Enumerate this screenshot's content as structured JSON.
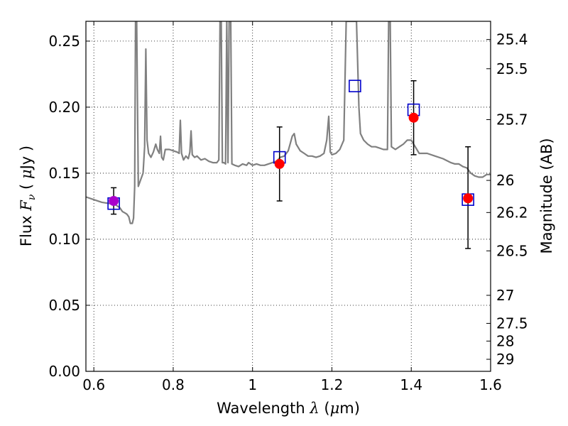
{
  "chart_data": {
    "type": "scatter",
    "xlabel": "Wavelength",
    "xlabel_symbol": "λ",
    "xlabel_unit_open": "(",
    "xlabel_unit_mu": "μ",
    "xlabel_unit_rest": "m)",
    "ylabel": "Flux",
    "ylabel_symbol": "F",
    "ylabel_sub": "ν",
    "ylabel_unit_open": "(",
    "ylabel_unit_mu": "μ",
    "ylabel_unit_rest": "Jy",
    "ylabel_unit_close": ")",
    "y2label": "Magnitude (AB)",
    "xlim": [
      0.58,
      1.6
    ],
    "ylim": [
      0.0,
      0.265
    ],
    "grid": true,
    "x_ticks": [
      0.6,
      0.8,
      1.0,
      1.2,
      1.4,
      1.6
    ],
    "x_tick_labels": [
      "0.6",
      "0.8",
      "1",
      "1.2",
      "1.4",
      "1.6"
    ],
    "y_ticks": [
      0.0,
      0.05,
      0.1,
      0.15,
      0.2,
      0.25
    ],
    "y_tick_labels": [
      "0.00",
      "0.05",
      "0.10",
      "0.15",
      "0.20",
      "0.25"
    ],
    "y2_ticks": [
      25.4,
      25.5,
      25.7,
      26,
      26.2,
      26.5,
      27,
      27.5,
      28,
      29
    ],
    "y2_tick_labels": [
      "25.4",
      "25.5",
      "25.7",
      "26",
      "26.2",
      "26.5",
      "27",
      "27.5",
      "28",
      "29"
    ],
    "colors": {
      "template": "#808080",
      "observed": "#ff0000",
      "model_box": "#0000cc",
      "errorbar": "#000000",
      "first_point": "#aa00cc"
    },
    "template_spectrum": [
      [
        0.58,
        0.132
      ],
      [
        0.6,
        0.13
      ],
      [
        0.62,
        0.128
      ],
      [
        0.64,
        0.127
      ],
      [
        0.655,
        0.126
      ],
      [
        0.665,
        0.124
      ],
      [
        0.672,
        0.121
      ],
      [
        0.678,
        0.12
      ],
      [
        0.683,
        0.119
      ],
      [
        0.688,
        0.117
      ],
      [
        0.692,
        0.112
      ],
      [
        0.697,
        0.112
      ],
      [
        0.7,
        0.116
      ],
      [
        0.703,
        0.14
      ],
      [
        0.705,
        0.265
      ],
      [
        0.708,
        0.265
      ],
      [
        0.712,
        0.14
      ],
      [
        0.718,
        0.145
      ],
      [
        0.724,
        0.15
      ],
      [
        0.728,
        0.17
      ],
      [
        0.731,
        0.244
      ],
      [
        0.734,
        0.175
      ],
      [
        0.738,
        0.165
      ],
      [
        0.744,
        0.162
      ],
      [
        0.75,
        0.166
      ],
      [
        0.756,
        0.172
      ],
      [
        0.76,
        0.168
      ],
      [
        0.765,
        0.165
      ],
      [
        0.768,
        0.178
      ],
      [
        0.771,
        0.162
      ],
      [
        0.775,
        0.16
      ],
      [
        0.78,
        0.168
      ],
      [
        0.79,
        0.168
      ],
      [
        0.8,
        0.167
      ],
      [
        0.81,
        0.166
      ],
      [
        0.815,
        0.165
      ],
      [
        0.818,
        0.19
      ],
      [
        0.821,
        0.165
      ],
      [
        0.826,
        0.16
      ],
      [
        0.832,
        0.163
      ],
      [
        0.838,
        0.161
      ],
      [
        0.842,
        0.166
      ],
      [
        0.845,
        0.182
      ],
      [
        0.848,
        0.164
      ],
      [
        0.854,
        0.162
      ],
      [
        0.86,
        0.163
      ],
      [
        0.87,
        0.16
      ],
      [
        0.88,
        0.161
      ],
      [
        0.89,
        0.159
      ],
      [
        0.9,
        0.158
      ],
      [
        0.91,
        0.158
      ],
      [
        0.915,
        0.16
      ],
      [
        0.918,
        0.265
      ],
      [
        0.921,
        0.265
      ],
      [
        0.924,
        0.158
      ],
      [
        0.928,
        0.158
      ],
      [
        0.932,
        0.157
      ],
      [
        0.935,
        0.265
      ],
      [
        0.938,
        0.158
      ],
      [
        0.941,
        0.265
      ],
      [
        0.945,
        0.265
      ],
      [
        0.948,
        0.157
      ],
      [
        0.955,
        0.156
      ],
      [
        0.965,
        0.155
      ],
      [
        0.975,
        0.157
      ],
      [
        0.985,
        0.156
      ],
      [
        0.99,
        0.158
      ],
      [
        1.0,
        0.156
      ],
      [
        1.01,
        0.157
      ],
      [
        1.02,
        0.156
      ],
      [
        1.03,
        0.156
      ],
      [
        1.04,
        0.157
      ],
      [
        1.05,
        0.158
      ],
      [
        1.06,
        0.159
      ],
      [
        1.07,
        0.162
      ],
      [
        1.08,
        0.163
      ],
      [
        1.09,
        0.167
      ],
      [
        1.1,
        0.178
      ],
      [
        1.105,
        0.18
      ],
      [
        1.11,
        0.172
      ],
      [
        1.12,
        0.167
      ],
      [
        1.13,
        0.165
      ],
      [
        1.14,
        0.163
      ],
      [
        1.15,
        0.163
      ],
      [
        1.16,
        0.162
      ],
      [
        1.17,
        0.163
      ],
      [
        1.18,
        0.165
      ],
      [
        1.187,
        0.175
      ],
      [
        1.192,
        0.193
      ],
      [
        1.196,
        0.166
      ],
      [
        1.2,
        0.164
      ],
      [
        1.21,
        0.165
      ],
      [
        1.22,
        0.168
      ],
      [
        1.23,
        0.175
      ],
      [
        1.236,
        0.265
      ],
      [
        1.262,
        0.265
      ],
      [
        1.268,
        0.2
      ],
      [
        1.272,
        0.18
      ],
      [
        1.28,
        0.175
      ],
      [
        1.29,
        0.172
      ],
      [
        1.3,
        0.17
      ],
      [
        1.31,
        0.17
      ],
      [
        1.32,
        0.169
      ],
      [
        1.33,
        0.168
      ],
      [
        1.34,
        0.168
      ],
      [
        1.343,
        0.265
      ],
      [
        1.347,
        0.265
      ],
      [
        1.35,
        0.17
      ],
      [
        1.36,
        0.168
      ],
      [
        1.37,
        0.17
      ],
      [
        1.38,
        0.172
      ],
      [
        1.39,
        0.175
      ],
      [
        1.4,
        0.175
      ],
      [
        1.41,
        0.17
      ],
      [
        1.42,
        0.165
      ],
      [
        1.44,
        0.165
      ],
      [
        1.46,
        0.163
      ],
      [
        1.48,
        0.161
      ],
      [
        1.5,
        0.158
      ],
      [
        1.51,
        0.157
      ],
      [
        1.52,
        0.157
      ],
      [
        1.53,
        0.155
      ],
      [
        1.54,
        0.154
      ],
      [
        1.55,
        0.15
      ],
      [
        1.56,
        0.148
      ],
      [
        1.57,
        0.147
      ],
      [
        1.58,
        0.147
      ],
      [
        1.59,
        0.149
      ],
      [
        1.6,
        0.149
      ]
    ],
    "observed": [
      {
        "x": 0.65,
        "y": 0.129,
        "yerr_low": 0.119,
        "yerr_high": 0.139
      },
      {
        "x": 1.068,
        "y": 0.157,
        "yerr_low": 0.129,
        "yerr_high": 0.185
      },
      {
        "x": 1.406,
        "y": 0.192,
        "yerr_low": 0.164,
        "yerr_high": 0.22
      },
      {
        "x": 1.543,
        "y": 0.131,
        "yerr_low": 0.093,
        "yerr_high": 0.17
      }
    ],
    "model": [
      {
        "x": 0.65,
        "y": 0.127
      },
      {
        "x": 1.068,
        "y": 0.162
      },
      {
        "x": 1.258,
        "y": 0.216
      },
      {
        "x": 1.406,
        "y": 0.198
      },
      {
        "x": 1.543,
        "y": 0.13
      }
    ]
  }
}
